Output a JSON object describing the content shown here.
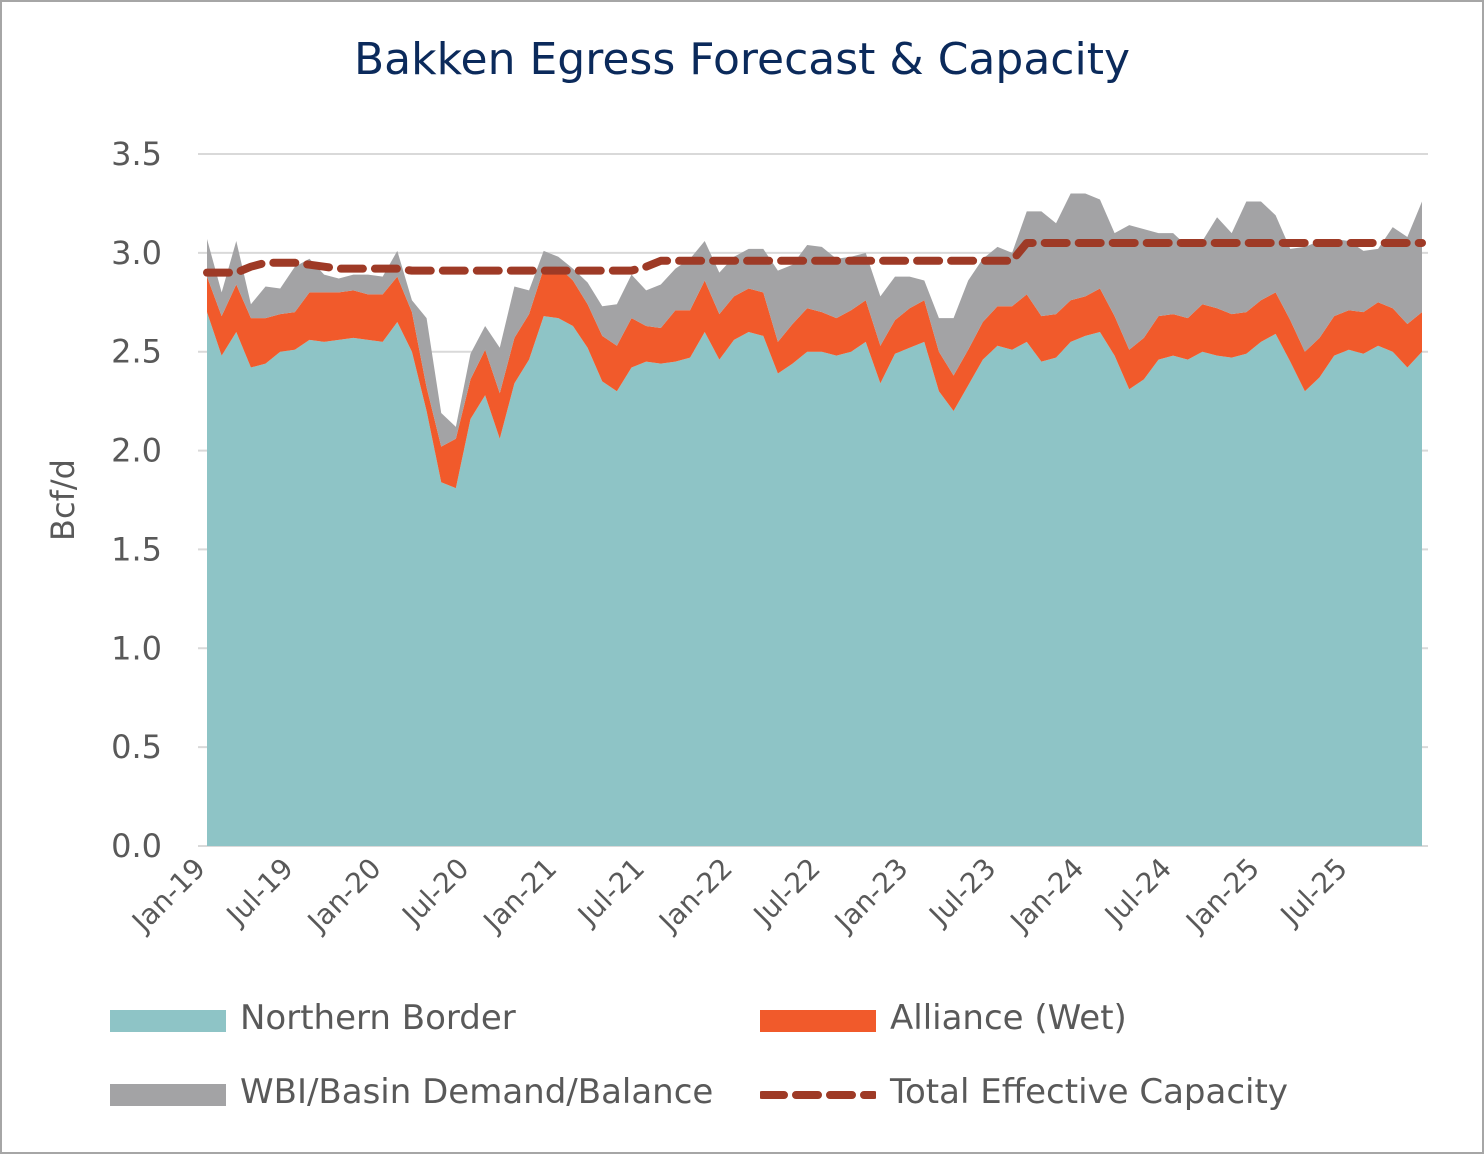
{
  "title": "Bakken Egress Forecast & Capacity",
  "colors": {
    "northern_border": "#8ec4c6",
    "alliance": "#f15a2b",
    "wbi": "#a3a3a5",
    "capacity": "#9e3a26",
    "grid": "#d9d9d9",
    "title": "#0b2a5b",
    "text": "#595959"
  },
  "legend": {
    "northern_border": "Northern Border",
    "alliance": "Alliance (Wet)",
    "wbi": "WBI/Basin Demand/Balance",
    "capacity": "Total Effective Capacity"
  },
  "chart_data": {
    "type": "area",
    "title": "Bakken Egress Forecast & Capacity",
    "ylabel": "Bcf/d",
    "xlabel": "",
    "ylim": [
      0,
      3.5
    ],
    "yticks": [
      "0.0",
      "0.5",
      "1.0",
      "1.5",
      "2.0",
      "2.5",
      "3.0",
      "3.5"
    ],
    "x_tick_labels": [
      "Jan-19",
      "Jul-19",
      "Jan-20",
      "Jul-20",
      "Jan-21",
      "Jul-21",
      "Jan-22",
      "Jul-22",
      "Jan-23",
      "Jul-23",
      "Jan-24",
      "Jul-24",
      "Jan-25",
      "Jul-25"
    ],
    "x_start": "Jan-19",
    "x_end": "Dec-25",
    "stacked": true,
    "grid": "horizontal",
    "legend_position": "bottom",
    "series": [
      {
        "name": "Northern Border",
        "values": [
          2.7,
          2.48,
          2.6,
          2.42,
          2.44,
          2.5,
          2.51,
          2.56,
          2.55,
          2.56,
          2.57,
          2.56,
          2.55,
          2.65,
          2.5,
          2.2,
          1.84,
          1.81,
          2.16,
          2.28,
          2.06,
          2.34,
          2.46,
          2.68,
          2.67,
          2.63,
          2.52,
          2.35,
          2.3,
          2.42,
          2.45,
          2.44,
          2.45,
          2.47,
          2.6,
          2.46,
          2.56,
          2.6,
          2.58,
          2.39,
          2.44,
          2.5,
          2.5,
          2.48,
          2.5,
          2.55,
          2.34,
          2.49,
          2.52,
          2.55,
          2.3,
          2.2,
          2.33,
          2.46,
          2.53,
          2.51,
          2.55,
          2.45,
          2.47,
          2.55,
          2.58,
          2.6,
          2.48,
          2.31,
          2.36,
          2.46,
          2.48,
          2.46,
          2.5,
          2.48,
          2.47,
          2.49,
          2.55,
          2.59,
          2.45,
          2.3,
          2.37,
          2.48,
          2.51,
          2.49,
          2.53,
          2.5,
          2.42,
          2.5
        ],
        "color": "#8ec4c6"
      },
      {
        "name": "Alliance (Wet)",
        "values": [
          0.18,
          0.2,
          0.24,
          0.25,
          0.23,
          0.19,
          0.19,
          0.24,
          0.25,
          0.24,
          0.24,
          0.23,
          0.24,
          0.23,
          0.2,
          0.12,
          0.18,
          0.25,
          0.2,
          0.23,
          0.23,
          0.23,
          0.23,
          0.24,
          0.26,
          0.23,
          0.22,
          0.23,
          0.23,
          0.25,
          0.18,
          0.18,
          0.26,
          0.24,
          0.26,
          0.23,
          0.22,
          0.22,
          0.22,
          0.16,
          0.2,
          0.22,
          0.2,
          0.19,
          0.21,
          0.21,
          0.19,
          0.17,
          0.2,
          0.21,
          0.2,
          0.18,
          0.18,
          0.19,
          0.2,
          0.22,
          0.24,
          0.23,
          0.22,
          0.21,
          0.2,
          0.22,
          0.2,
          0.2,
          0.21,
          0.22,
          0.21,
          0.21,
          0.24,
          0.24,
          0.22,
          0.21,
          0.21,
          0.21,
          0.21,
          0.2,
          0.2,
          0.2,
          0.2,
          0.21,
          0.22,
          0.22,
          0.22,
          0.2
        ],
        "color": "#f15a2b"
      },
      {
        "name": "WBI/Basin Demand/Balance",
        "values": [
          0.19,
          0.12,
          0.22,
          0.07,
          0.16,
          0.13,
          0.23,
          0.17,
          0.09,
          0.07,
          0.08,
          0.1,
          0.09,
          0.13,
          0.06,
          0.35,
          0.17,
          0.06,
          0.13,
          0.12,
          0.23,
          0.26,
          0.12,
          0.09,
          0.05,
          0.06,
          0.11,
          0.15,
          0.21,
          0.22,
          0.18,
          0.22,
          0.21,
          0.26,
          0.2,
          0.21,
          0.2,
          0.2,
          0.22,
          0.36,
          0.3,
          0.32,
          0.33,
          0.3,
          0.27,
          0.24,
          0.25,
          0.22,
          0.16,
          0.1,
          0.17,
          0.29,
          0.35,
          0.32,
          0.3,
          0.27,
          0.42,
          0.53,
          0.46,
          0.54,
          0.52,
          0.45,
          0.42,
          0.63,
          0.55,
          0.42,
          0.41,
          0.36,
          0.32,
          0.46,
          0.41,
          0.56,
          0.5,
          0.39,
          0.36,
          0.53,
          0.49,
          0.39,
          0.35,
          0.31,
          0.27,
          0.41,
          0.44,
          0.56
        ],
        "color": "#a3a3a5"
      },
      {
        "name": "Total Effective Capacity",
        "type": "line",
        "style": "dashed",
        "values": [
          2.9,
          2.9,
          2.9,
          2.93,
          2.95,
          2.95,
          2.95,
          2.94,
          2.93,
          2.92,
          2.92,
          2.92,
          2.92,
          2.92,
          2.91,
          2.91,
          2.91,
          2.91,
          2.91,
          2.91,
          2.91,
          2.91,
          2.91,
          2.91,
          2.91,
          2.91,
          2.91,
          2.91,
          2.91,
          2.91,
          2.93,
          2.96,
          2.96,
          2.96,
          2.96,
          2.96,
          2.96,
          2.96,
          2.96,
          2.96,
          2.96,
          2.96,
          2.96,
          2.96,
          2.96,
          2.96,
          2.96,
          2.96,
          2.96,
          2.96,
          2.96,
          2.96,
          2.96,
          2.96,
          2.96,
          2.96,
          3.05,
          3.05,
          3.05,
          3.05,
          3.05,
          3.05,
          3.05,
          3.05,
          3.05,
          3.05,
          3.05,
          3.05,
          3.05,
          3.05,
          3.05,
          3.05,
          3.05,
          3.05,
          3.05,
          3.05,
          3.05,
          3.05,
          3.05,
          3.05,
          3.05,
          3.05,
          3.05,
          3.05
        ],
        "color": "#9e3a26"
      }
    ]
  }
}
